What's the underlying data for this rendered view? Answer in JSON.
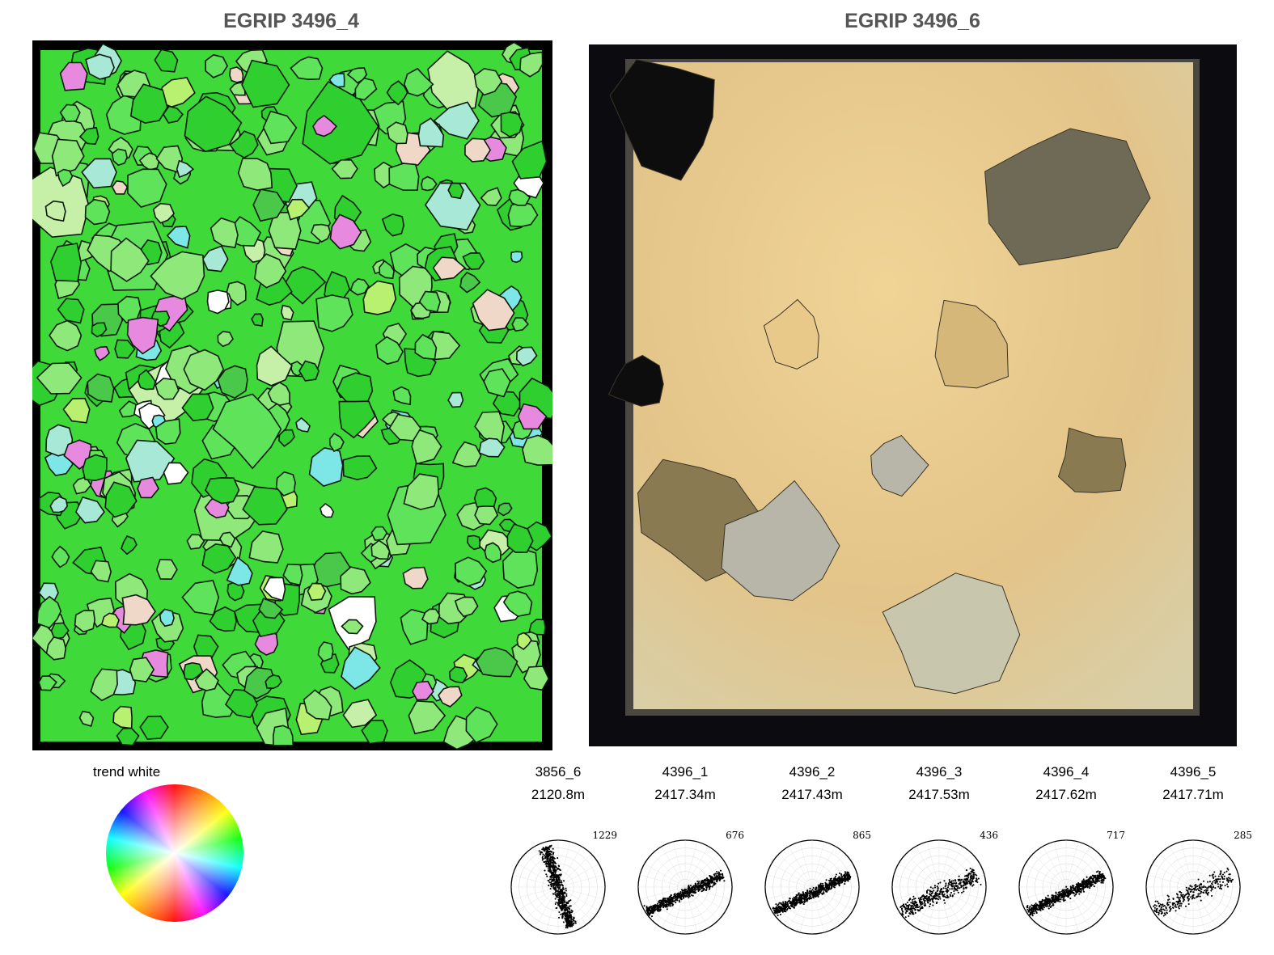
{
  "panels": {
    "left_title": "EGRIP 3496_4",
    "right_title": "EGRIP 3496_6"
  },
  "legend": {
    "label": "trend white",
    "icon": "color-wheel-icon"
  },
  "pole_figures": [
    {
      "id": "3856_6",
      "depth": "2120.8m",
      "count": "1229",
      "pattern": "steep"
    },
    {
      "id": "4396_1",
      "depth": "2417.34m",
      "count": "676",
      "pattern": "girdle"
    },
    {
      "id": "4396_2",
      "depth": "2417.43m",
      "count": "865",
      "pattern": "girdle"
    },
    {
      "id": "4396_3",
      "depth": "2417.53m",
      "count": "436",
      "pattern": "girdle-scattered"
    },
    {
      "id": "4396_4",
      "depth": "2417.62m",
      "count": "717",
      "pattern": "girdle"
    },
    {
      "id": "4396_5",
      "depth": "2417.71m",
      "count": "285",
      "pattern": "girdle-scattered"
    }
  ],
  "colors": {
    "title": "#555555",
    "map_green": "#3fd93a",
    "thin_section_tan": "#e8c98a",
    "frame": "#000000"
  }
}
